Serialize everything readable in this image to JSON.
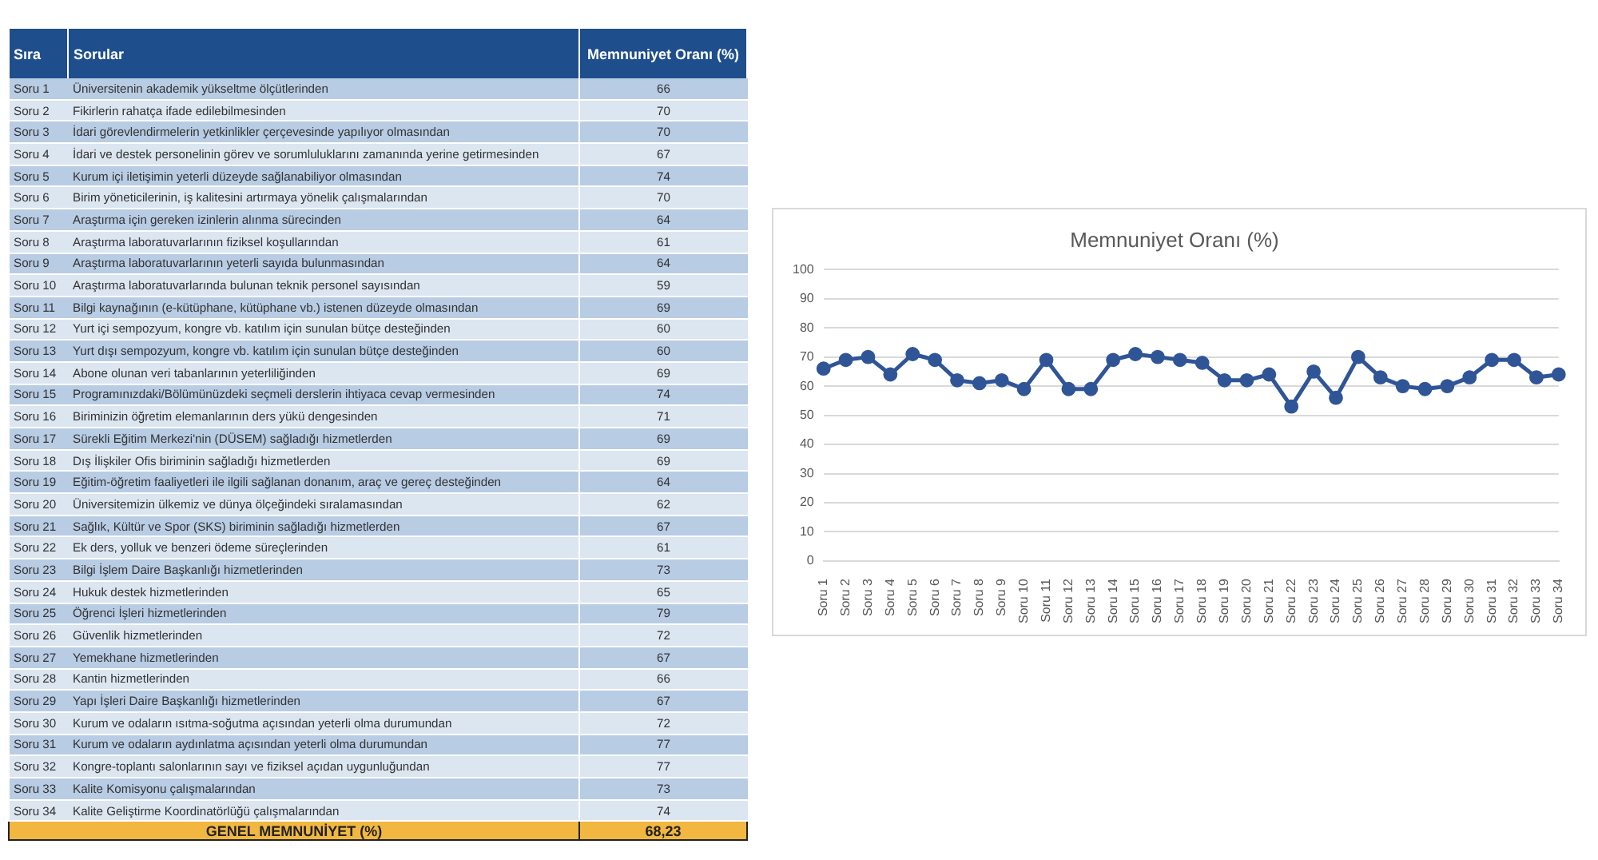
{
  "chart_data": [
    {
      "type": "other",
      "categories": [
        "Sıra",
        "Sorular",
        "Memnuniyet Oranı (%)"
      ],
      "cell_labels": [
        [
          "Soru 1",
          "Üniversitenin akademik yükseltme ölçütlerinden",
          "66"
        ],
        [
          "Soru 2",
          "Fikirlerin rahatça ifade edilebilmesinden",
          "70"
        ],
        [
          "Soru 3",
          "İdari görevlendirmelerin yetkinlikler çerçevesinde yapılıyor olmasından",
          "70"
        ],
        [
          "Soru 4",
          "İdari ve destek personelinin görev ve sorumluluklarını zamanında yerine getirmesinden",
          "67"
        ],
        [
          "Soru 5",
          "Kurum içi iletişimin yeterli düzeyde sağlanabiliyor olmasından",
          "74"
        ],
        [
          "Soru 6",
          "Birim yöneticilerinin, iş kalitesini artırmaya yönelik çalışmalarından",
          "70"
        ],
        [
          "Soru 7",
          "Araştırma için gereken izinlerin alınma sürecinden",
          "64"
        ],
        [
          "Soru 8",
          "Araştırma laboratuvarlarının fiziksel koşullarından",
          "61"
        ],
        [
          "Soru 9",
          "Araştırma laboratuvarlarının yeterli sayıda bulunmasından",
          "64"
        ],
        [
          "Soru 10",
          "Araştırma laboratuvarlarında bulunan teknik personel sayısından",
          "59"
        ],
        [
          "Soru 11",
          "Bilgi kaynağının (e-kütüphane, kütüphane vb.) istenen düzeyde olmasından",
          "69"
        ],
        [
          "Soru 12",
          "Yurt içi sempozyum, kongre vb. katılım için sunulan bütçe desteğinden",
          "60"
        ],
        [
          "Soru 13",
          "Yurt dışı sempozyum, kongre vb. katılım için sunulan bütçe desteğinden",
          "60"
        ],
        [
          "Soru 14",
          "Abone olunan veri tabanlarının yeterliliğinden",
          "69"
        ],
        [
          "Soru 15",
          "Programınızdaki/Bölümünüzdeki seçmeli derslerin ihtiyaca cevap vermesinden",
          "74"
        ],
        [
          "Soru 16",
          "Biriminizin öğretim elemanlarının ders yükü dengesinden",
          "71"
        ],
        [
          "Soru 17",
          "Sürekli Eğitim Merkezi'nin (DÜSEM) sağladığı hizmetlerden",
          "69"
        ],
        [
          "Soru 18",
          "Dış İlişkiler Ofis biriminin sağladığı hizmetlerden",
          "69"
        ],
        [
          "Soru 19",
          "Eğitim-öğretim faaliyetleri ile ilgili sağlanan donanım, araç ve gereç desteğinden",
          "64"
        ],
        [
          "Soru 20",
          "Üniversitemizin ülkemiz ve dünya ölçeğindeki sıralamasından",
          "62"
        ],
        [
          "Soru 21",
          "Sağlık, Kültür ve Spor (SKS) biriminin sağladığı hizmetlerden",
          "67"
        ],
        [
          "Soru 22",
          "Ek ders, yolluk ve benzeri ödeme süreçlerinden",
          "61"
        ],
        [
          "Soru 23",
          "Bilgi İşlem Daire Başkanlığı hizmetlerinden",
          "73"
        ],
        [
          "Soru 24",
          "Hukuk destek hizmetlerinden",
          "65"
        ],
        [
          "Soru 25",
          "Öğrenci İşleri hizmetlerinden",
          "79"
        ],
        [
          "Soru 26",
          "Güvenlik hizmetlerinden",
          "72"
        ],
        [
          "Soru 27",
          "Yemekhane hizmetlerinden",
          "67"
        ],
        [
          "Soru 28",
          "Kantin hizmetlerinden",
          "66"
        ],
        [
          "Soru 29",
          "Yapı İşleri Daire Başkanlığı hizmetlerinden",
          "67"
        ],
        [
          "Soru 30",
          "Kurum ve odaların ısıtma-soğutma açısından yeterli olma durumundan",
          "72"
        ],
        [
          "Soru 31",
          "Kurum ve odaların aydınlatma açısından yeterli olma durumundan",
          "77"
        ],
        [
          "Soru 32",
          "Kongre-toplantı salonlarının sayı ve fiziksel açıdan uygunluğundan",
          "77"
        ],
        [
          "Soru 33",
          "Kalite Komisyonu çalışmalarından",
          "73"
        ],
        [
          "Soru 34",
          "Kalite Geliştirme Koordinatörlüğü çalışmalarından",
          "74"
        ]
      ],
      "annotations": [
        "GENEL MEMNUNİYET (%)",
        "68,23"
      ]
    },
    {
      "type": "line",
      "title": "Memnuniyet Oranı (%)",
      "categories": [
        "Soru 1",
        "Soru 2",
        "Soru 3",
        "Soru 4",
        "Soru 5",
        "Soru 6",
        "Soru 7",
        "Soru 8",
        "Soru 9",
        "Soru 10",
        "Soru 11",
        "Soru 12",
        "Soru 13",
        "Soru 14",
        "Soru 15",
        "Soru 16",
        "Soru 17",
        "Soru 18",
        "Soru 19",
        "Soru 20",
        "Soru 21",
        "Soru 22",
        "Soru 23",
        "Soru 24",
        "Soru 25",
        "Soru 26",
        "Soru 27",
        "Soru 28",
        "Soru 29",
        "Soru 30",
        "Soru 31",
        "Soru 32",
        "Soru 33",
        "Soru 34"
      ],
      "series": [
        {
          "color": "#2f5597",
          "values": [
            66,
            69,
            70,
            64,
            71,
            69,
            62,
            61,
            62,
            59,
            69,
            59,
            59,
            69,
            71,
            70,
            69,
            68,
            62,
            62,
            64,
            53,
            65,
            56,
            70,
            63,
            60,
            59,
            60,
            63,
            69,
            69,
            63,
            64
          ]
        }
      ],
      "ylim": [
        0,
        100
      ],
      "yticks": [
        0,
        10,
        20,
        30,
        40,
        50,
        60,
        70,
        80,
        90,
        100
      ],
      "grid": "y",
      "marker": "circle"
    }
  ]
}
